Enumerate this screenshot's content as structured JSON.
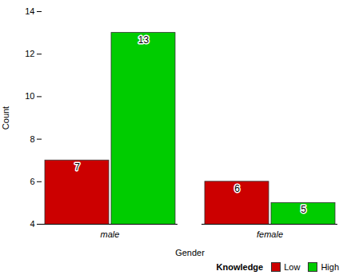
{
  "chart_data": {
    "type": "bar",
    "categories": [
      "male",
      "female"
    ],
    "series": [
      {
        "name": "Low",
        "color": "#cc0000",
        "values": [
          7,
          6
        ]
      },
      {
        "name": "High",
        "color": "#00cc00",
        "values": [
          13,
          5
        ]
      }
    ],
    "xlabel": "Gender",
    "ylabel": "Count",
    "ylim": [
      4,
      14
    ],
    "yticks": [
      4,
      6,
      8,
      10,
      12,
      14
    ],
    "legend": "lower right",
    "legend_title": "Knowledge",
    "data_labels": true,
    "grid": false
  }
}
